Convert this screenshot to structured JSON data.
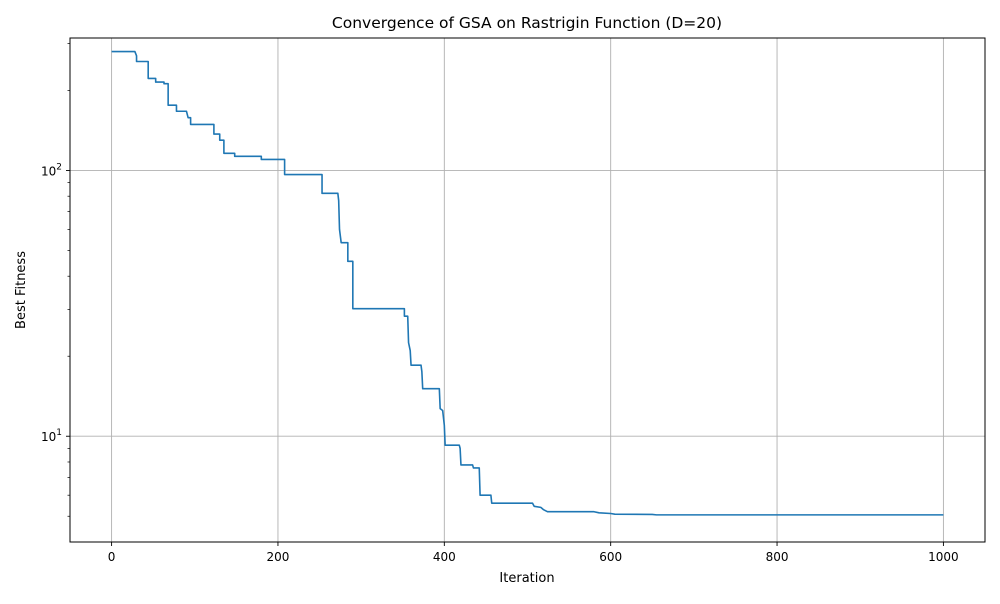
{
  "chart_data": {
    "type": "line",
    "title": "Convergence of GSA on Rastrigin Function (D=20)",
    "xlabel": "Iteration",
    "ylabel": "Best Fitness",
    "xlim": [
      -50,
      1050
    ],
    "ylim": [
      4.0,
      315
    ],
    "yscale": "log",
    "grid": true,
    "x_ticks": [
      0,
      200,
      400,
      600,
      800,
      1000
    ],
    "x_tick_labels": [
      "0",
      "200",
      "400",
      "600",
      "800",
      "1000"
    ],
    "y_ticks": [
      10,
      100
    ],
    "y_tick_labels": [
      "10^1",
      "10^2"
    ],
    "series_color": "#1f77b4",
    "series": [
      {
        "name": "",
        "points": [
          [
            0,
            280
          ],
          [
            28,
            280
          ],
          [
            30,
            270
          ],
          [
            30,
            257
          ],
          [
            44,
            257
          ],
          [
            44,
            222
          ],
          [
            53,
            222
          ],
          [
            53,
            215
          ],
          [
            63,
            215
          ],
          [
            63,
            212
          ],
          [
            68,
            212
          ],
          [
            68,
            176
          ],
          [
            78,
            176
          ],
          [
            78,
            167
          ],
          [
            90,
            167
          ],
          [
            92,
            158
          ],
          [
            95,
            158
          ],
          [
            95,
            149
          ],
          [
            123,
            149
          ],
          [
            123,
            137
          ],
          [
            130,
            137
          ],
          [
            130,
            130
          ],
          [
            135,
            130
          ],
          [
            135,
            116
          ],
          [
            148,
            116
          ],
          [
            148,
            113
          ],
          [
            180,
            113
          ],
          [
            180,
            110
          ],
          [
            208,
            110
          ],
          [
            208,
            96.5
          ],
          [
            253,
            96.5
          ],
          [
            253,
            82
          ],
          [
            272,
            82
          ],
          [
            273,
            77
          ],
          [
            274,
            60
          ],
          [
            276,
            53.5
          ],
          [
            284,
            53.5
          ],
          [
            284,
            45.5
          ],
          [
            290,
            45.5
          ],
          [
            290,
            30.2
          ],
          [
            352,
            30.2
          ],
          [
            352,
            28.3
          ],
          [
            356,
            28.3
          ],
          [
            357,
            22.5
          ],
          [
            359,
            21
          ],
          [
            360,
            18.5
          ],
          [
            372,
            18.5
          ],
          [
            373,
            17.5
          ],
          [
            374,
            15.1
          ],
          [
            394,
            15.1
          ],
          [
            395,
            12.7
          ],
          [
            398,
            12.5
          ],
          [
            400,
            11.0
          ],
          [
            401,
            9.25
          ],
          [
            418,
            9.25
          ],
          [
            419,
            9.0
          ],
          [
            420,
            7.8
          ],
          [
            434,
            7.8
          ],
          [
            435,
            7.6
          ],
          [
            442,
            7.6
          ],
          [
            443,
            6.0
          ],
          [
            456,
            6.0
          ],
          [
            457,
            5.6
          ],
          [
            506,
            5.6
          ],
          [
            508,
            5.45
          ],
          [
            516,
            5.4
          ],
          [
            519,
            5.3
          ],
          [
            524,
            5.2
          ],
          [
            580,
            5.2
          ],
          [
            586,
            5.15
          ],
          [
            600,
            5.12
          ],
          [
            605,
            5.09
          ],
          [
            650,
            5.08
          ],
          [
            655,
            5.06
          ],
          [
            1000,
            5.06
          ]
        ]
      }
    ]
  }
}
